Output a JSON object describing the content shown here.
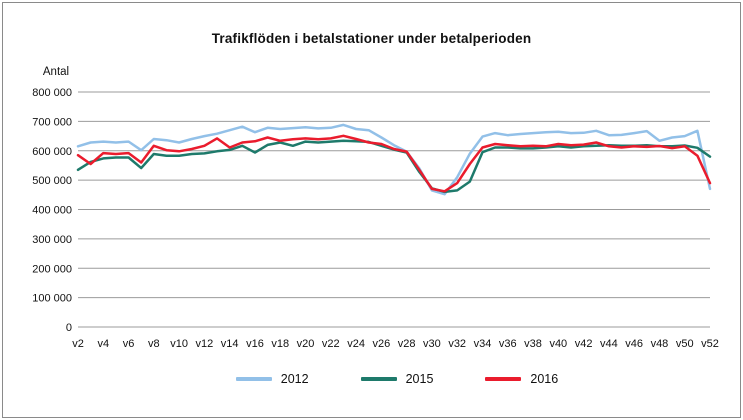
{
  "window": {
    "background": "#ffffff",
    "border_color": "#8a8a8a",
    "gridline_color": "#9b9b9b",
    "text_color": "#111111"
  },
  "chart_data": {
    "type": "line",
    "title": "Trafikflöden i betalstationer under betalperioden",
    "y_axis_label": "Antal",
    "xlabel": "",
    "ylabel": "Antal",
    "ylim": [
      0,
      800000
    ],
    "y_tick_step": 100000,
    "y_tick_labels": [
      "800 000",
      "700 000",
      "600 000",
      "500 000",
      "400 000",
      "300 000",
      "200 000",
      "100 000",
      "0"
    ],
    "x_unit": "week",
    "x_start_week": 2,
    "x_end_week": 52,
    "x_points_per_series": 51,
    "x_tick_labels": [
      "v2",
      "v4",
      "v6",
      "v8",
      "v10",
      "v12",
      "v14",
      "v16",
      "v18",
      "v20",
      "v22",
      "v24",
      "v26",
      "v28",
      "v30",
      "v32",
      "v34",
      "v36",
      "v38",
      "v40",
      "v42",
      "v44",
      "v46",
      "v48",
      "v50",
      "v52"
    ],
    "grid": "horizontal",
    "legend_position": "bottom",
    "series": [
      {
        "name": "2012",
        "color": "#92C0E8",
        "values": [
          615000,
          628000,
          631000,
          628000,
          631000,
          602000,
          640000,
          636000,
          628000,
          640000,
          650000,
          658000,
          670000,
          682000,
          663000,
          678000,
          674000,
          677000,
          680000,
          676000,
          678000,
          688000,
          674000,
          670000,
          645000,
          619000,
          597000,
          540000,
          465000,
          452000,
          510000,
          590000,
          648000,
          660000,
          653000,
          657000,
          660000,
          663000,
          665000,
          660000,
          661000,
          668000,
          653000,
          654000,
          660000,
          667000,
          634000,
          645000,
          650000,
          668000,
          470000
        ]
      },
      {
        "name": "2015",
        "color": "#1E7A6B",
        "values": [
          535000,
          562000,
          574000,
          577000,
          577000,
          541000,
          589000,
          583000,
          583000,
          589000,
          591000,
          598000,
          603000,
          617000,
          594000,
          620000,
          628000,
          617000,
          631000,
          628000,
          631000,
          634000,
          632000,
          630000,
          617000,
          604000,
          594000,
          528000,
          472000,
          460000,
          465000,
          495000,
          595000,
          611000,
          611000,
          608000,
          608000,
          611000,
          615000,
          611000,
          615000,
          617000,
          619000,
          617000,
          617000,
          619000,
          615000,
          615000,
          618000,
          610000,
          580000
        ]
      },
      {
        "name": "2016",
        "color": "#EA1C2D",
        "values": [
          585000,
          555000,
          592000,
          589000,
          592000,
          560000,
          617000,
          602000,
          598000,
          606000,
          617000,
          642000,
          611000,
          628000,
          632000,
          645000,
          634000,
          639000,
          642000,
          639000,
          642000,
          651000,
          640000,
          628000,
          623000,
          606000,
          597000,
          535000,
          470000,
          462000,
          490000,
          555000,
          611000,
          623000,
          619000,
          615000,
          617000,
          615000,
          623000,
          619000,
          621000,
          628000,
          615000,
          611000,
          615000,
          613000,
          616000,
          609000,
          615000,
          583000,
          490000
        ]
      }
    ]
  }
}
